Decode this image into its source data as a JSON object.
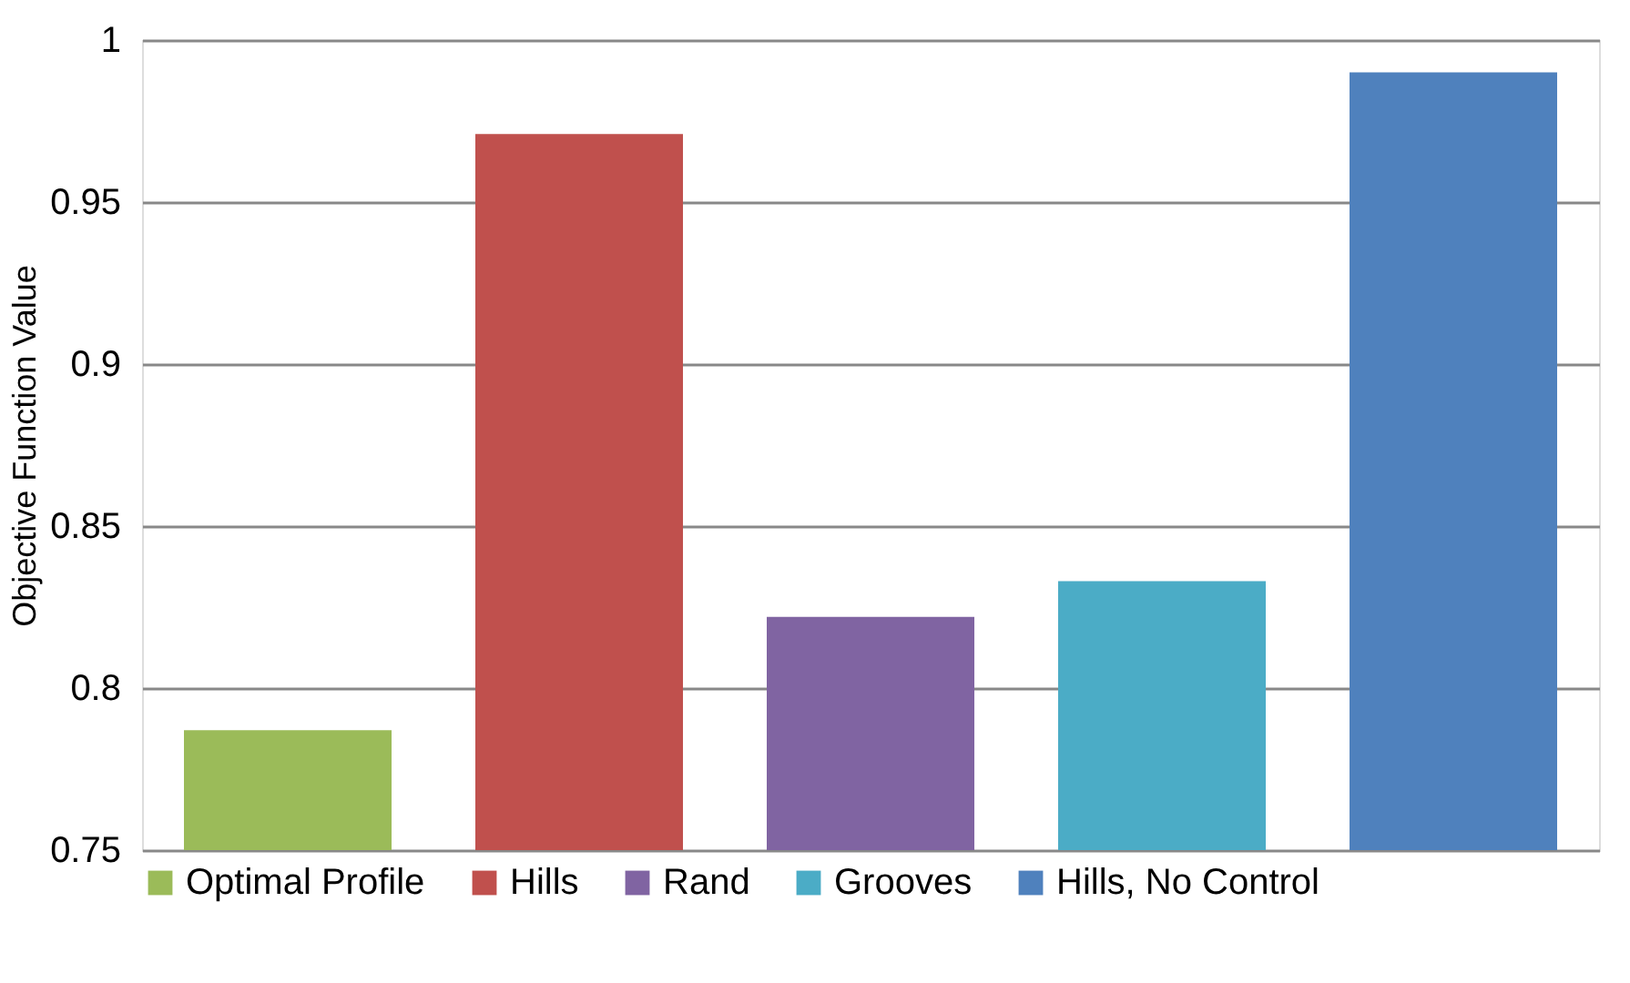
{
  "chart_data": {
    "type": "bar",
    "ylabel": "Objective Function Value",
    "categories": [
      null,
      null,
      null,
      null,
      null
    ],
    "series": [
      {
        "name": "Optimal Profile",
        "color": "#9bbb59",
        "values": [
          0.787,
          null,
          null,
          null,
          null
        ]
      },
      {
        "name": "Hills",
        "color": "#c0504d",
        "values": [
          null,
          0.971,
          null,
          null,
          null
        ]
      },
      {
        "name": "Rand",
        "color": "#8064a2",
        "values": [
          null,
          null,
          0.822,
          null,
          null
        ]
      },
      {
        "name": "Grooves",
        "color": "#4bacc6",
        "values": [
          null,
          null,
          null,
          0.833,
          null
        ]
      },
      {
        "name": "Hills, No Control",
        "color": "#4f81bd",
        "values": [
          null,
          null,
          null,
          null,
          0.99
        ]
      }
    ],
    "ylim": [
      0.75,
      1
    ],
    "yticks": [
      0.75,
      0.8,
      0.85,
      0.9,
      0.95,
      1
    ],
    "grid": "y",
    "legend": "bottom",
    "tick_labels": "y"
  }
}
